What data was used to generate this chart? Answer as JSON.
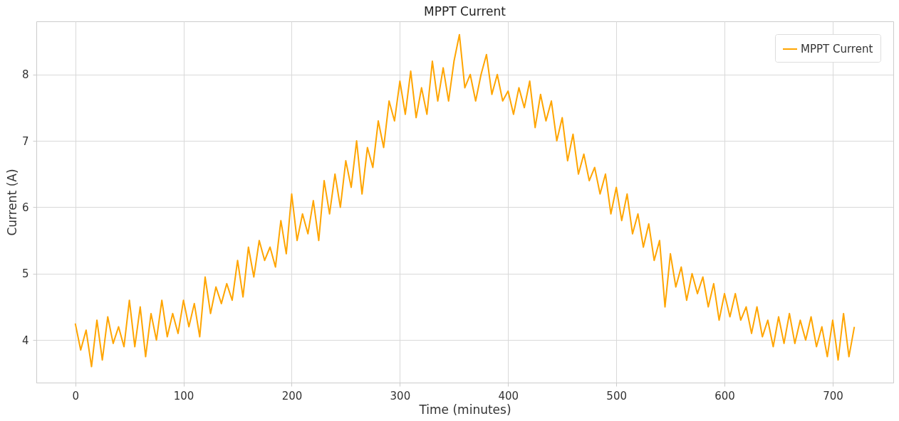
{
  "chart_data": {
    "type": "line",
    "title": "MPPT Current",
    "xlabel": "Time (minutes)",
    "ylabel": "Current (A)",
    "xlim": [
      -36,
      756
    ],
    "ylim": [
      3.36,
      8.8
    ],
    "xticks": [
      0,
      100,
      200,
      300,
      400,
      500,
      600,
      700
    ],
    "yticks": [
      4,
      5,
      6,
      7,
      8
    ],
    "grid": true,
    "legend": "top right",
    "line_style": "solid",
    "x": [
      0,
      5,
      10,
      15,
      20,
      25,
      30,
      35,
      40,
      45,
      50,
      55,
      60,
      65,
      70,
      75,
      80,
      85,
      90,
      95,
      100,
      105,
      110,
      115,
      120,
      125,
      130,
      135,
      140,
      145,
      150,
      155,
      160,
      165,
      170,
      175,
      180,
      185,
      190,
      195,
      200,
      205,
      210,
      215,
      220,
      225,
      230,
      235,
      240,
      245,
      250,
      255,
      260,
      265,
      270,
      275,
      280,
      285,
      290,
      295,
      300,
      305,
      310,
      315,
      320,
      325,
      330,
      335,
      340,
      345,
      350,
      355,
      360,
      365,
      370,
      375,
      380,
      385,
      390,
      395,
      400,
      405,
      410,
      415,
      420,
      425,
      430,
      435,
      440,
      445,
      450,
      455,
      460,
      465,
      470,
      475,
      480,
      485,
      490,
      495,
      500,
      505,
      510,
      515,
      520,
      525,
      530,
      535,
      540,
      545,
      550,
      555,
      560,
      565,
      570,
      575,
      580,
      585,
      590,
      595,
      600,
      605,
      610,
      615,
      620,
      625,
      630,
      635,
      640,
      645,
      650,
      655,
      660,
      665,
      670,
      675,
      680,
      685,
      690,
      695,
      700,
      705,
      710,
      715,
      720
    ],
    "series": [
      {
        "name": "MPPT Current",
        "color": "#ffa500",
        "values": [
          4.25,
          3.85,
          4.15,
          3.6,
          4.3,
          3.7,
          4.35,
          3.95,
          4.2,
          3.9,
          4.6,
          3.9,
          4.5,
          3.75,
          4.4,
          4.0,
          4.6,
          4.05,
          4.4,
          4.1,
          4.6,
          4.2,
          4.55,
          4.05,
          4.95,
          4.4,
          4.8,
          4.55,
          4.85,
          4.6,
          5.2,
          4.65,
          5.4,
          4.95,
          5.5,
          5.2,
          5.4,
          5.1,
          5.8,
          5.3,
          6.2,
          5.5,
          5.9,
          5.6,
          6.1,
          5.5,
          6.4,
          5.9,
          6.5,
          6.0,
          6.7,
          6.3,
          7.0,
          6.2,
          6.9,
          6.6,
          7.3,
          6.9,
          7.6,
          7.3,
          7.9,
          7.4,
          8.05,
          7.35,
          7.8,
          7.4,
          8.2,
          7.6,
          8.1,
          7.6,
          8.2,
          8.6,
          7.8,
          8.0,
          7.6,
          8.0,
          8.3,
          7.7,
          8.0,
          7.6,
          7.75,
          7.4,
          7.8,
          7.5,
          7.9,
          7.2,
          7.7,
          7.3,
          7.6,
          7.0,
          7.35,
          6.7,
          7.1,
          6.5,
          6.8,
          6.4,
          6.6,
          6.2,
          6.5,
          5.9,
          6.3,
          5.8,
          6.2,
          5.6,
          5.9,
          5.4,
          5.75,
          5.2,
          5.5,
          4.5,
          5.3,
          4.8,
          5.1,
          4.6,
          5.0,
          4.7,
          4.95,
          4.5,
          4.85,
          4.3,
          4.7,
          4.35,
          4.7,
          4.3,
          4.5,
          4.1,
          4.5,
          4.05,
          4.3,
          3.9,
          4.35,
          3.95,
          4.4,
          3.95,
          4.3,
          4.0,
          4.35,
          3.9,
          4.2,
          3.75,
          4.3,
          3.7,
          4.4,
          3.75,
          4.2
        ]
      }
    ]
  }
}
